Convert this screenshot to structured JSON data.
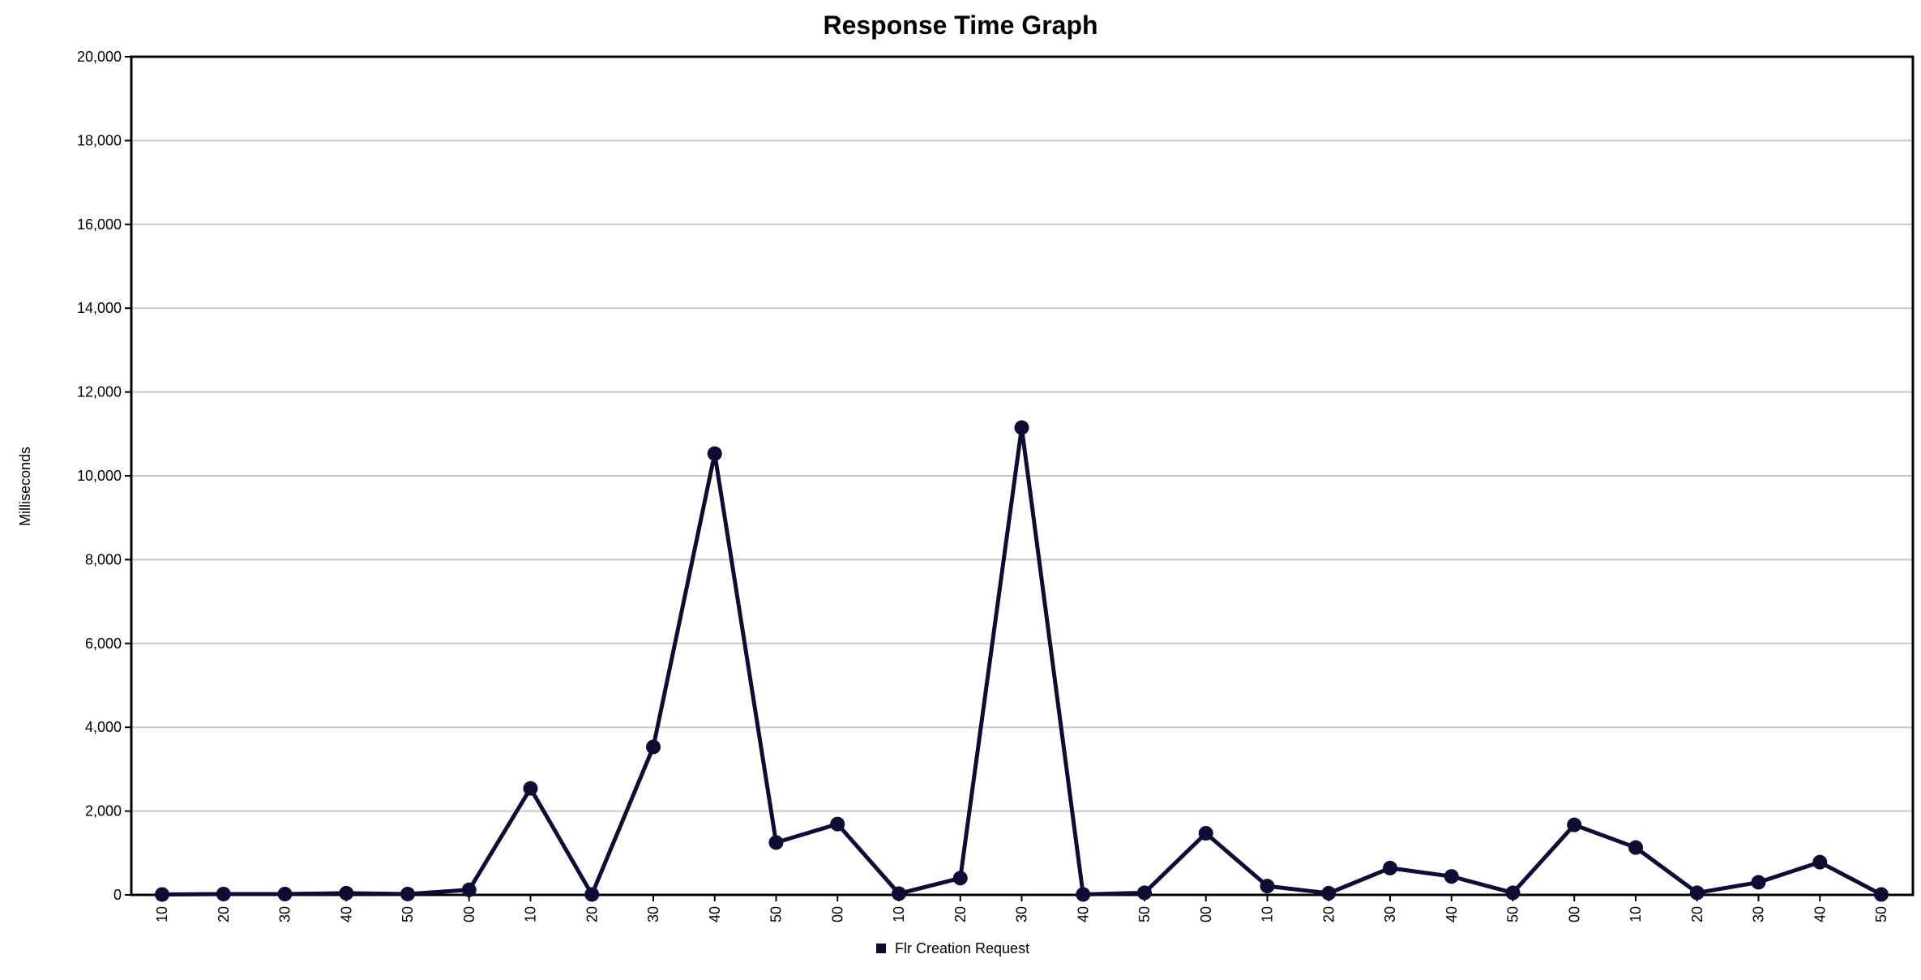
{
  "colors": {
    "series": "#0d0c33",
    "grid": "#c9c9c9",
    "axis": "#000000",
    "background": "#ffffff"
  },
  "chart_data": {
    "type": "line",
    "title": "Response Time Graph",
    "xlabel": "",
    "ylabel": "Milliseconds",
    "ylim": [
      0,
      20000
    ],
    "yticks": [
      "0",
      "2,000",
      "4,000",
      "6,000",
      "8,000",
      "10,000",
      "12,000",
      "14,000",
      "16,000",
      "18,000",
      "20,000"
    ],
    "grid": true,
    "legend_position": "bottom",
    "categories": [
      "10",
      "20",
      "30",
      "40",
      "50",
      "00",
      "10",
      "20",
      "30",
      "40",
      "50",
      "00",
      "10",
      "20",
      "30",
      "40",
      "50",
      "00",
      "10",
      "20",
      "30",
      "40",
      "50",
      "00",
      "10",
      "20",
      "30",
      "40",
      "50"
    ],
    "series": [
      {
        "name": "Flr Creation Request",
        "color": "#0d0c33",
        "marker": "circle",
        "values": [
          10,
          20,
          20,
          40,
          20,
          120,
          2540,
          10,
          3530,
          10530,
          1250,
          1690,
          30,
          400,
          11150,
          10,
          50,
          1470,
          210,
          40,
          640,
          440,
          50,
          1670,
          1130,
          50,
          300,
          780,
          10
        ]
      }
    ]
  }
}
